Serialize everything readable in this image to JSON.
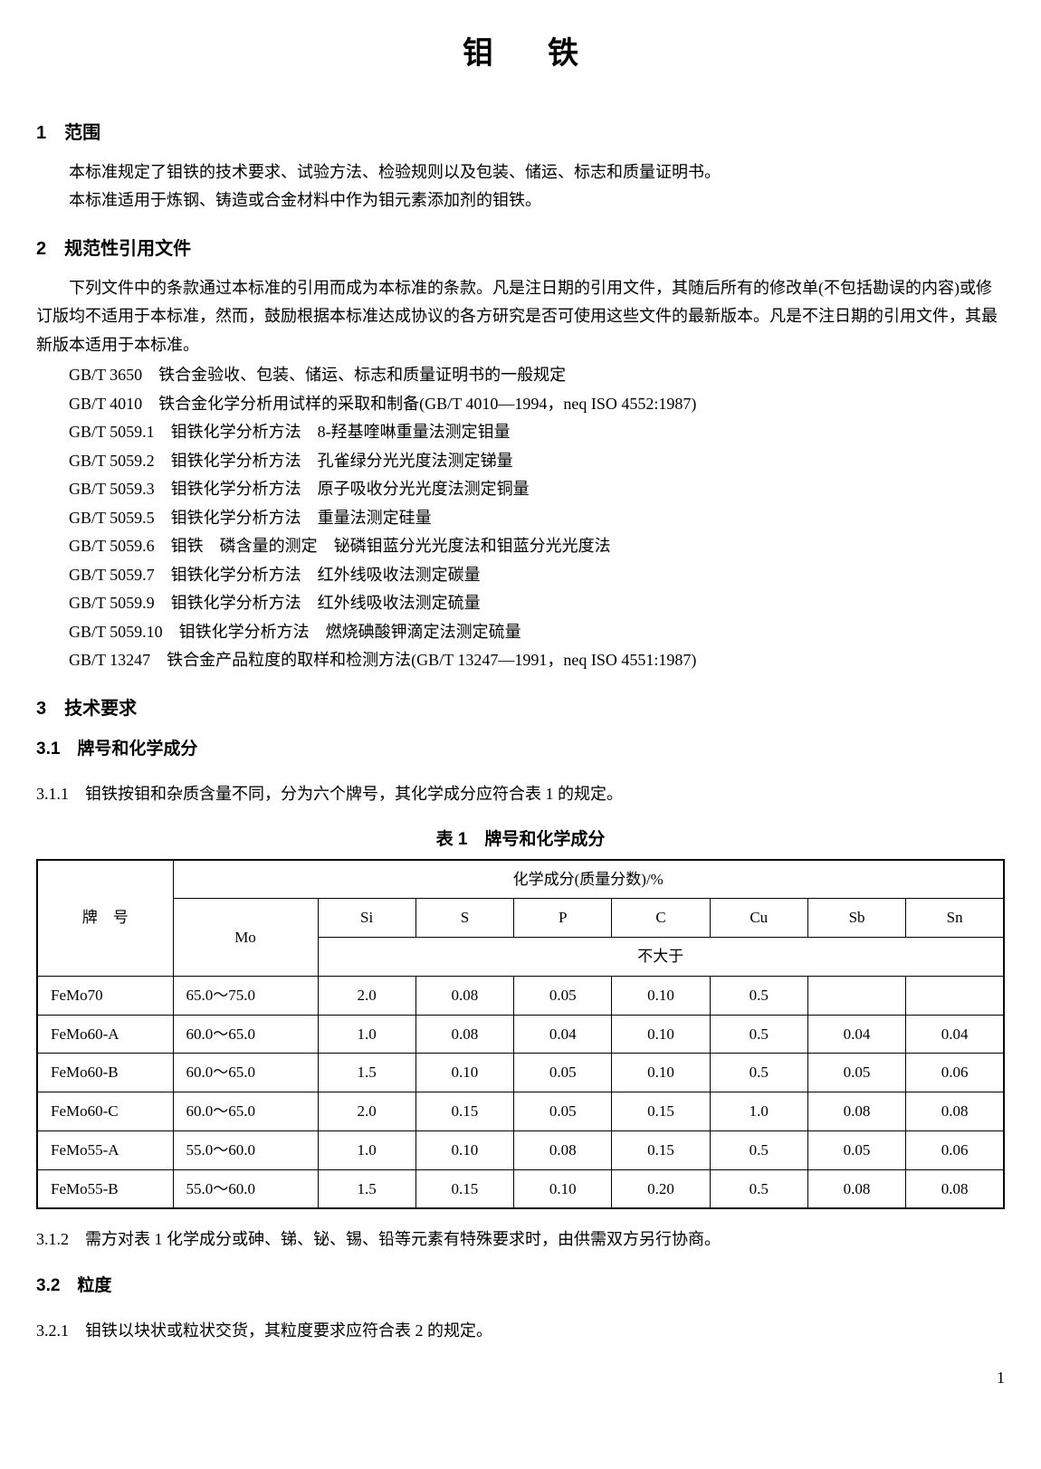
{
  "title": "钼铁",
  "sections": {
    "s1": {
      "num": "1",
      "title": "范围"
    },
    "s2": {
      "num": "2",
      "title": "规范性引用文件"
    },
    "s3": {
      "num": "3",
      "title": "技术要求"
    }
  },
  "scope": {
    "p1": "本标准规定了钼铁的技术要求、试验方法、检验规则以及包装、储运、标志和质量证明书。",
    "p2": "本标准适用于炼钢、铸造或合金材料中作为钼元素添加剂的钼铁。"
  },
  "norm_refs": {
    "intro": "下列文件中的条款通过本标准的引用而成为本标准的条款。凡是注日期的引用文件，其随后所有的修改单(不包括勘误的内容)或修订版均不适用于本标准，然而，鼓励根据本标准达成协议的各方研究是否可使用这些文件的最新版本。凡是不注日期的引用文件，其最新版本适用于本标准。",
    "items": [
      "GB/T 3650　铁合金验收、包装、储运、标志和质量证明书的一般规定",
      "GB/T 4010　铁合金化学分析用试样的采取和制备(GB/T 4010—1994，neq ISO 4552:1987)",
      "GB/T 5059.1　钼铁化学分析方法　8-羟基喹啉重量法测定钼量",
      "GB/T 5059.2　钼铁化学分析方法　孔雀绿分光光度法测定锑量",
      "GB/T 5059.3　钼铁化学分析方法　原子吸收分光光度法测定铜量",
      "GB/T 5059.5　钼铁化学分析方法　重量法测定硅量",
      "GB/T 5059.6　钼铁　磷含量的测定　铋磷钼蓝分光光度法和钼蓝分光光度法",
      "GB/T 5059.7　钼铁化学分析方法　红外线吸收法测定碳量",
      "GB/T 5059.9　钼铁化学分析方法　红外线吸收法测定硫量",
      "GB/T 5059.10　钼铁化学分析方法　燃烧碘酸钾滴定法测定硫量",
      "GB/T 13247　铁合金产品粒度的取样和检测方法(GB/T 13247—1991，neq ISO 4551:1987)"
    ]
  },
  "tech": {
    "h31": "3.1　牌号和化学成分",
    "p311": "3.1.1　钼铁按钼和杂质含量不同，分为六个牌号，其化学成分应符合表 1 的规定。",
    "caption1": "表 1　牌号和化学成分",
    "p312": "3.1.2　需方对表 1 化学成分或砷、锑、铋、锡、铅等元素有特殊要求时，由供需双方另行协商。",
    "h32": "3.2　粒度",
    "p321": "3.2.1　钼铁以块状或粒状交货，其粒度要求应符合表 2 的规定。"
  },
  "table1": {
    "head": {
      "grade": "牌　号",
      "chem": "化学成分(质量分数)/%",
      "mo": "Mo",
      "elems": [
        "Si",
        "S",
        "P",
        "C",
        "Cu",
        "Sb",
        "Sn"
      ],
      "le": "不大于"
    },
    "rows": [
      {
        "g": "FeMo70",
        "mo": "65.0～75.0",
        "v": [
          "2.0",
          "0.08",
          "0.05",
          "0.10",
          "0.5",
          "",
          ""
        ]
      },
      {
        "g": "FeMo60-A",
        "mo": "60.0～65.0",
        "v": [
          "1.0",
          "0.08",
          "0.04",
          "0.10",
          "0.5",
          "0.04",
          "0.04"
        ]
      },
      {
        "g": "FeMo60-B",
        "mo": "60.0～65.0",
        "v": [
          "1.5",
          "0.10",
          "0.05",
          "0.10",
          "0.5",
          "0.05",
          "0.06"
        ]
      },
      {
        "g": "FeMo60-C",
        "mo": "60.0～65.0",
        "v": [
          "2.0",
          "0.15",
          "0.05",
          "0.15",
          "1.0",
          "0.08",
          "0.08"
        ]
      },
      {
        "g": "FeMo55-A",
        "mo": "55.0～60.0",
        "v": [
          "1.0",
          "0.10",
          "0.08",
          "0.15",
          "0.5",
          "0.05",
          "0.06"
        ]
      },
      {
        "g": "FeMo55-B",
        "mo": "55.0～60.0",
        "v": [
          "1.5",
          "0.15",
          "0.10",
          "0.20",
          "0.5",
          "0.08",
          "0.08"
        ]
      }
    ]
  },
  "page_number": "1"
}
